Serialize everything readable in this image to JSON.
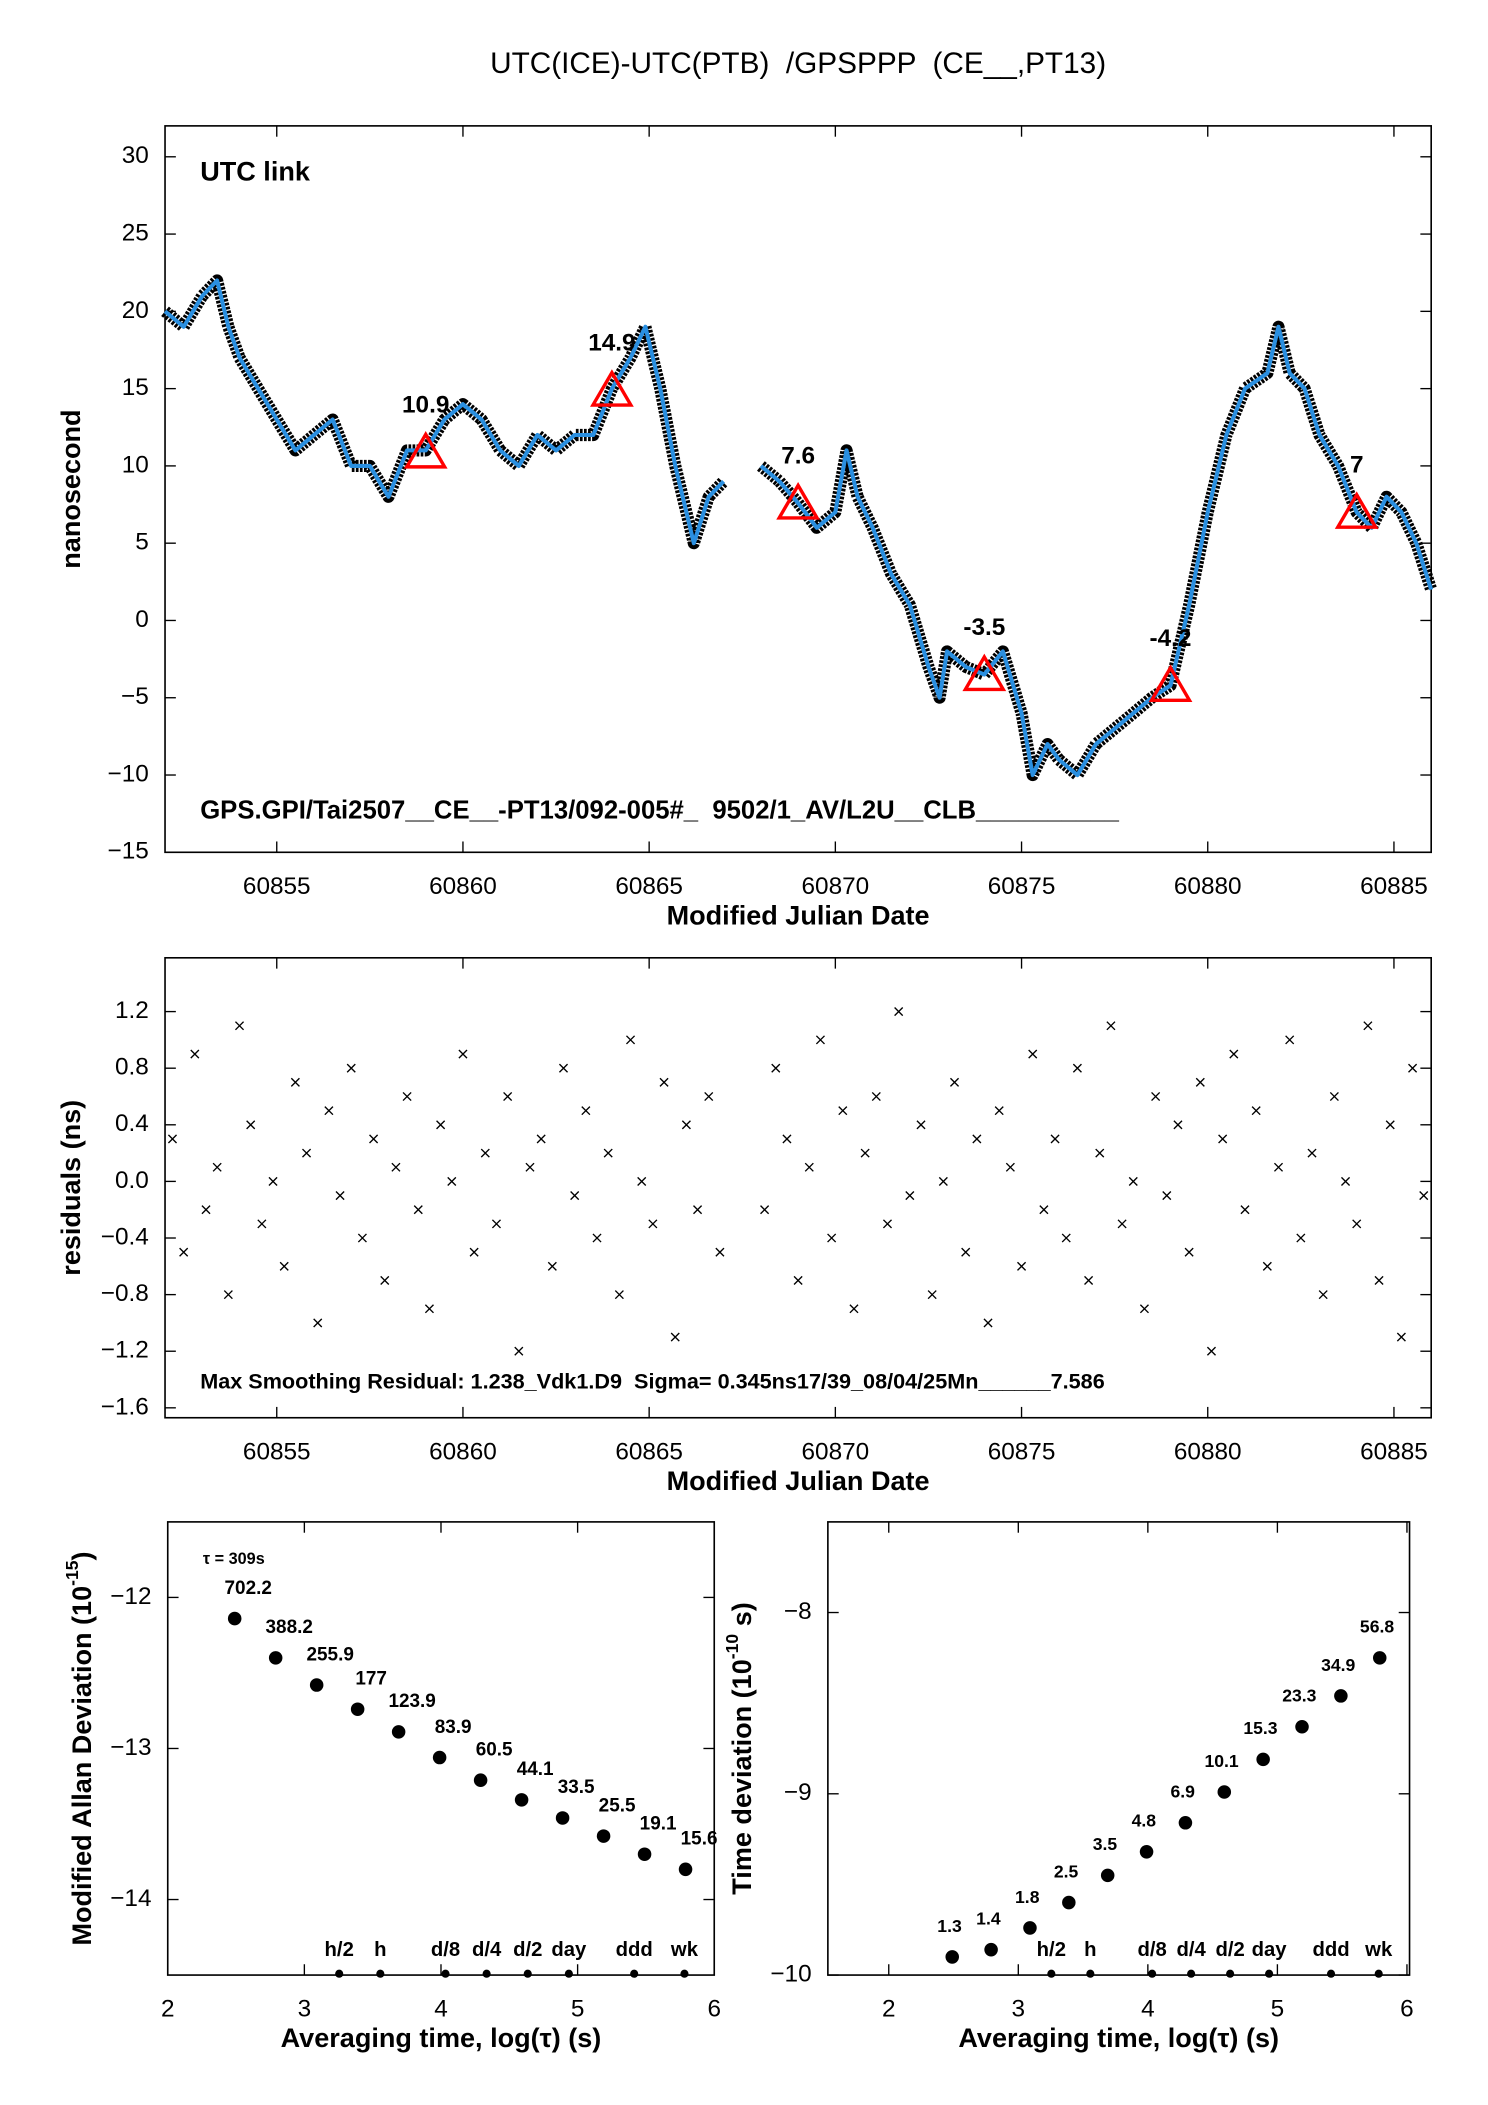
{
  "chart_data": [
    {
      "type": "line",
      "title": "UTC(ICE)-UTC(PTB)  /GPSPPP  (CE__,PT13)",
      "ylabel": "nanosecond",
      "xlabel": "Modified Julian Date",
      "annotation": "UTC link",
      "annotation_color": "#5b8a1e",
      "footnote": "GPS.GPI/Tai2507__CE__-PT13/092-005#_  9502/1_AV/L2U__CLB__________",
      "xlim": [
        60852,
        60886
      ],
      "ylim": [
        -15,
        32
      ],
      "xticks": [
        60855,
        60860,
        60865,
        60870,
        60875,
        60880,
        60885
      ],
      "yticks": [
        {
          "value": -15,
          "label": "−15"
        },
        {
          "value": -10,
          "label": "−10"
        },
        {
          "value": -5,
          "label": "−5"
        },
        0,
        5,
        10,
        15,
        20,
        25,
        30
      ],
      "outline_color": "#000000",
      "series": [
        {
          "color": "#2a8fe0",
          "x": [
            60852.0,
            60852.5,
            60853.0,
            60853.4,
            60853.7,
            60854.0,
            60854.5,
            60855.0,
            60855.5,
            60856.0,
            60856.5,
            60857.0,
            60857.5,
            60858.0,
            60858.5,
            60859.0,
            60859.5,
            60860.0,
            60860.5,
            60861.0,
            60861.5,
            60862.0,
            60862.5,
            60863.0,
            60863.5,
            60864.0,
            60864.5,
            60864.9,
            60865.3,
            60865.7,
            60866.2,
            60866.6,
            60867.0,
            60867.5,
            60868.0,
            60868.5,
            60869.0,
            60869.5,
            60870.0,
            60870.3,
            60870.6,
            60871.0,
            60871.5,
            60872.0,
            60872.5,
            60872.8,
            60873.0,
            60873.5,
            60874.0,
            60874.5,
            60875.0,
            60875.3,
            60875.7,
            60876.0,
            60876.5,
            60877.0,
            60877.5,
            60878.0,
            60878.5,
            60879.0,
            60879.5,
            60880.0,
            60880.5,
            60881.0,
            60881.6,
            60881.9,
            60882.2,
            60882.6,
            60883.0,
            60883.5,
            60884.0,
            60884.4,
            60884.8,
            60885.2,
            60885.6,
            60886.0
          ],
          "values": [
            20,
            19,
            21,
            22,
            19,
            17,
            15,
            13,
            11,
            12,
            13,
            10,
            10,
            8,
            11,
            11,
            13,
            14,
            13,
            11,
            10,
            12,
            11,
            12,
            12,
            15,
            17,
            19,
            15,
            10,
            5,
            8,
            9,
            null,
            10,
            9,
            7.6,
            6,
            7,
            11,
            8,
            6,
            3,
            1,
            -3,
            -5,
            -2,
            -3,
            -3.5,
            -2,
            -6,
            -10,
            -8,
            -9,
            -10,
            -8,
            -7,
            -6,
            -5,
            -4.2,
            1,
            7,
            12,
            15,
            16,
            19,
            16,
            15,
            12,
            10,
            7,
            6,
            8,
            7,
            5,
            2
          ]
        }
      ],
      "markers": {
        "color": "#ff0000",
        "x": [
          60859,
          60864,
          60869,
          60874,
          60879,
          60884
        ],
        "values": [
          10.9,
          14.9,
          7.6,
          -3.5,
          -4.2,
          7.0
        ]
      }
    },
    {
      "type": "scatter",
      "ylabel": "residuals (ns)",
      "xlabel": "Modified Julian Date",
      "footnote": "Max Smoothing Residual: 1.238_Vdk1.D9  Sigma= 0.345ns17/39_08/04/25Mn______7.586",
      "xlim": [
        60852,
        60886
      ],
      "ylim": [
        -1.67,
        1.58
      ],
      "xticks": [
        60855,
        60860,
        60865,
        60870,
        60875,
        60880,
        60885
      ],
      "yticks": [
        {
          "value": -1.6,
          "label": "−1.6"
        },
        {
          "value": -1.2,
          "label": "−1.2"
        },
        {
          "value": -0.8,
          "label": "−0.8"
        },
        {
          "value": -0.4,
          "label": "−0.4"
        },
        {
          "value": 0,
          "label": "0.0"
        },
        0.4,
        0.8,
        1.2
      ],
      "color": "#000000",
      "x": [
        60852.2,
        60852.5,
        60852.8,
        60853.1,
        60853.4,
        60853.7,
        60854.0,
        60854.3,
        60854.6,
        60854.9,
        60855.2,
        60855.5,
        60855.8,
        60856.1,
        60856.4,
        60856.7,
        60857.0,
        60857.3,
        60857.6,
        60857.9,
        60858.2,
        60858.5,
        60858.8,
        60859.1,
        60859.4,
        60859.7,
        60860.0,
        60860.3,
        60860.6,
        60860.9,
        60861.2,
        60861.5,
        60861.8,
        60862.1,
        60862.4,
        60862.7,
        60863.0,
        60863.3,
        60863.6,
        60863.9,
        60864.2,
        60864.5,
        60864.8,
        60865.1,
        60865.4,
        60865.7,
        60866.0,
        60866.3,
        60866.6,
        60866.9,
        60868.1,
        60868.4,
        60868.7,
        60869.0,
        60869.3,
        60869.6,
        60869.9,
        60870.2,
        60870.5,
        60870.8,
        60871.1,
        60871.4,
        60871.7,
        60872.0,
        60872.3,
        60872.6,
        60872.9,
        60873.2,
        60873.5,
        60873.8,
        60874.1,
        60874.4,
        60874.7,
        60875.0,
        60875.3,
        60875.6,
        60875.9,
        60876.2,
        60876.5,
        60876.8,
        60877.1,
        60877.4,
        60877.7,
        60878.0,
        60878.3,
        60878.6,
        60878.9,
        60879.2,
        60879.5,
        60879.8,
        60880.1,
        60880.4,
        60880.7,
        60881.0,
        60881.3,
        60881.6,
        60881.9,
        60882.2,
        60882.5,
        60882.8,
        60883.1,
        60883.4,
        60883.7,
        60884.0,
        60884.3,
        60884.6,
        60884.9,
        60885.2,
        60885.5,
        60885.8
      ],
      "values": [
        0.3,
        -0.5,
        0.9,
        -0.2,
        0.1,
        -0.8,
        1.1,
        0.4,
        -0.3,
        0.0,
        -0.6,
        0.7,
        0.2,
        -1.0,
        0.5,
        -0.1,
        0.8,
        -0.4,
        0.3,
        -0.7,
        0.1,
        0.6,
        -0.2,
        -0.9,
        0.4,
        0.0,
        0.9,
        -0.5,
        0.2,
        -0.3,
        0.6,
        -1.2,
        0.1,
        0.3,
        -0.6,
        0.8,
        -0.1,
        0.5,
        -0.4,
        0.2,
        -0.8,
        1.0,
        0.0,
        -0.3,
        0.7,
        -1.1,
        0.4,
        -0.2,
        0.6,
        -0.5,
        -0.2,
        0.8,
        0.3,
        -0.7,
        0.1,
        1.0,
        -0.4,
        0.5,
        -0.9,
        0.2,
        0.6,
        -0.3,
        1.2,
        -0.1,
        0.4,
        -0.8,
        0.0,
        0.7,
        -0.5,
        0.3,
        -1.0,
        0.5,
        0.1,
        -0.6,
        0.9,
        -0.2,
        0.3,
        -0.4,
        0.8,
        -0.7,
        0.2,
        1.1,
        -0.3,
        0.0,
        -0.9,
        0.6,
        -0.1,
        0.4,
        -0.5,
        0.7,
        -1.2,
        0.3,
        0.9,
        -0.2,
        0.5,
        -0.6,
        0.1,
        1.0,
        -0.4,
        0.2,
        -0.8,
        0.6,
        0.0,
        -0.3,
        1.1,
        -0.7,
        0.4,
        -1.1,
        0.8,
        -0.1
      ]
    },
    {
      "type": "scatter",
      "ylabel": {
        "text": "Modified Allan Deviation (10",
        "exponent": "-15",
        "end": ")"
      },
      "xlabel": "Averaging time, log(τ) (s)",
      "annotation": "τ = 309s",
      "annotation_color": "#000000",
      "xlim": [
        2,
        6
      ],
      "ylim": [
        -14.5,
        -11.5
      ],
      "xticks": [
        2,
        3,
        4,
        5,
        6
      ],
      "yticks": [
        {
          "value": -14,
          "label": "−14"
        },
        {
          "value": -13,
          "label": "−13"
        },
        {
          "value": -12,
          "label": "−12"
        }
      ],
      "color": "#000000",
      "x": [
        2.49,
        2.79,
        3.09,
        3.39,
        3.69,
        3.99,
        4.29,
        4.59,
        4.89,
        5.19,
        5.49,
        5.79
      ],
      "values": [
        -12.14,
        -12.4,
        -12.58,
        -12.74,
        -12.89,
        -13.06,
        -13.21,
        -13.34,
        -13.46,
        -13.58,
        -13.7,
        -13.8
      ],
      "point_labels": [
        702.2,
        388.2,
        255.9,
        177.0,
        123.9,
        83.9,
        60.5,
        44.1,
        33.5,
        25.5,
        19.1,
        15.6
      ],
      "label_color": "#ff0000",
      "reference_marks": {
        "labels": [
          "h/2",
          "h",
          "d/8",
          "d/4",
          "d/2",
          "day",
          "ddd",
          "wk"
        ],
        "x": [
          3.255,
          3.556,
          4.033,
          4.334,
          4.635,
          4.936,
          5.414,
          5.782
        ]
      }
    },
    {
      "type": "scatter",
      "ylabel": {
        "text": "Time deviation (10",
        "exponent": "-10",
        "end": " s)"
      },
      "xlabel": "Averaging time, log(τ) (s)",
      "xlim": [
        1.53,
        6.02
      ],
      "ylim": [
        -10,
        -7.5
      ],
      "xticks": [
        2,
        3,
        4,
        5,
        6
      ],
      "yticks": [
        {
          "value": -10,
          "label": "−10"
        },
        {
          "value": -9,
          "label": "−9"
        },
        {
          "value": -8,
          "label": "−8"
        }
      ],
      "color": "#000000",
      "x": [
        2.49,
        2.79,
        3.09,
        3.39,
        3.69,
        3.99,
        4.29,
        4.59,
        4.89,
        5.19,
        5.49,
        5.79
      ],
      "values": [
        -9.9,
        -9.86,
        -9.74,
        -9.6,
        -9.45,
        -9.32,
        -9.16,
        -8.99,
        -8.81,
        -8.63,
        -8.46,
        -8.25
      ],
      "point_labels": [
        1.3,
        1.4,
        1.8,
        2.5,
        3.5,
        4.8,
        6.9,
        10.1,
        15.3,
        23.3,
        34.9,
        56.8
      ],
      "label_color": "#ff0000",
      "reference_marks": {
        "labels": [
          "h/2",
          "h",
          "d/8",
          "d/4",
          "d/2",
          "day",
          "ddd",
          "wk"
        ],
        "x": [
          3.255,
          3.556,
          4.033,
          4.334,
          4.635,
          4.936,
          5.414,
          5.782
        ]
      }
    }
  ]
}
